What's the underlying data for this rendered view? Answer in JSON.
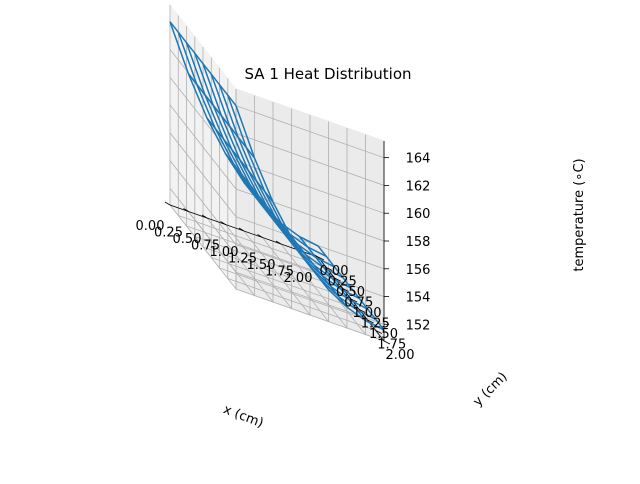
{
  "chart_data": {
    "type": "surface-wireframe-3d",
    "title": "SA 1 Heat Distribution",
    "xlabel": "x (cm)",
    "ylabel": "y (cm)",
    "zlabel": "temperature (∘C)",
    "xlim": [
      0,
      2
    ],
    "ylim": [
      0,
      2
    ],
    "zlim": [
      150.8,
      165.2
    ],
    "xticks": [
      "0.00",
      "0.25",
      "0.50",
      "0.75",
      "1.00",
      "1.25",
      "1.50",
      "1.75",
      "2.00"
    ],
    "yticks": [
      "0.00",
      "0.25",
      "0.50",
      "0.75",
      "1.00",
      "1.25",
      "1.50",
      "1.75",
      "2.00"
    ],
    "zticks": [
      "152",
      "154",
      "156",
      "158",
      "160",
      "162",
      "164"
    ],
    "grid": true,
    "wire_color": "#1f77b4",
    "x": [
      0,
      0.25,
      0.5,
      0.75,
      1.0,
      1.25,
      1.5,
      1.75,
      2.0
    ],
    "y": [
      0,
      0.25,
      0.5,
      0.75,
      1.0,
      1.25,
      1.5,
      1.75,
      2.0
    ],
    "z_profile_along_x": [
      164.0,
      160.7,
      158.0,
      155.9,
      154.3,
      153.1,
      152.3,
      151.8,
      151.6
    ]
  }
}
